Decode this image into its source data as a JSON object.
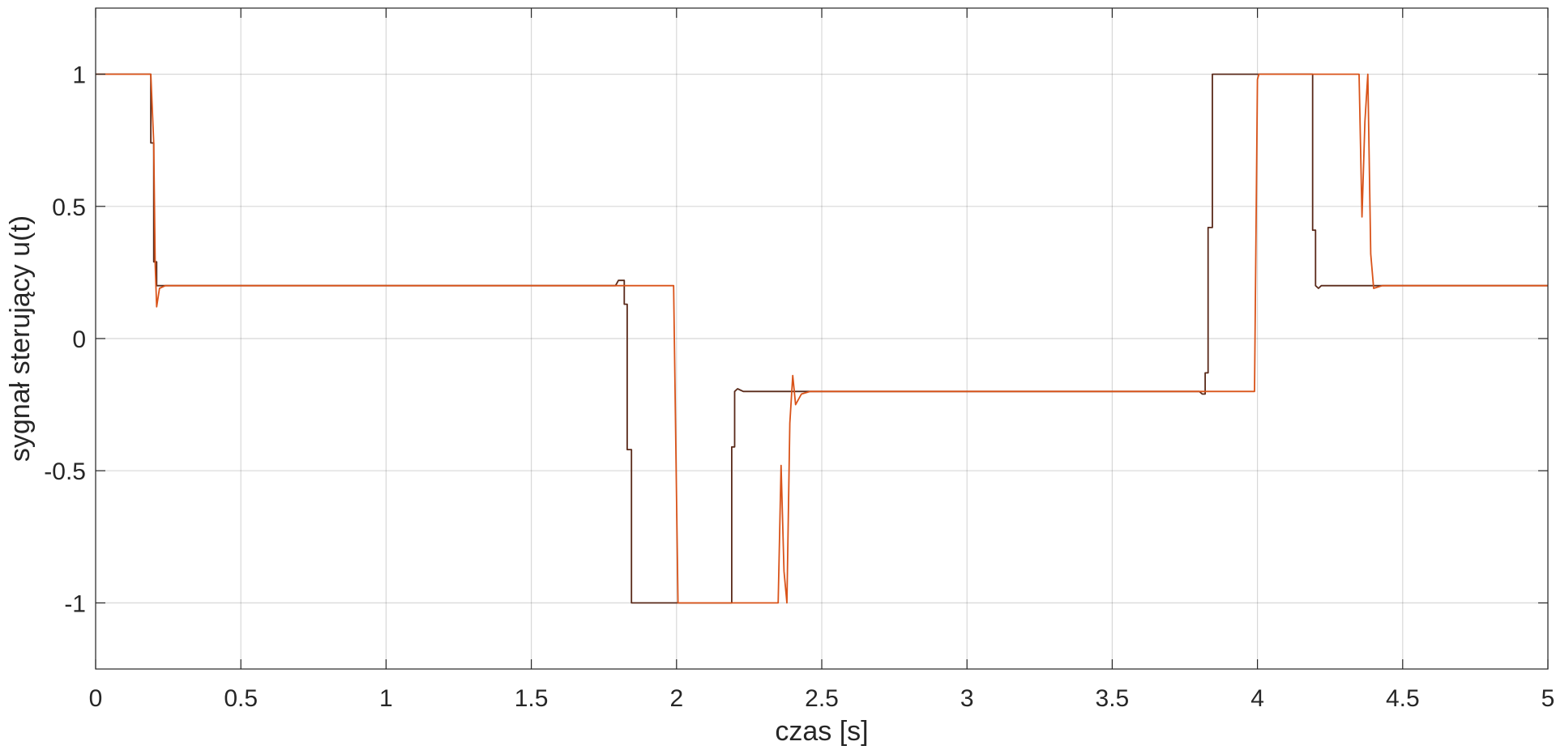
{
  "chart_data": {
    "type": "line",
    "title": "",
    "xlabel": "czas [s]",
    "ylabel": "sygnał sterujący u(t)",
    "xlim": [
      0,
      5
    ],
    "ylim": [
      -1.25,
      1.25
    ],
    "grid": true,
    "legend": "none",
    "x_ticks": [
      0,
      0.5,
      1,
      1.5,
      2,
      2.5,
      3,
      3.5,
      4,
      4.5,
      5
    ],
    "x_tick_labels": [
      "0",
      "0.5",
      "1",
      "1.5",
      "2",
      "2.5",
      "3",
      "3.5",
      "4",
      "4.5",
      "5"
    ],
    "y_ticks": [
      -1,
      -0.5,
      0,
      0.5,
      1
    ],
    "y_tick_labels": [
      "-1",
      "-0.5",
      "0",
      "0.5",
      "1"
    ],
    "series": [
      {
        "color": "#5a2a1a",
        "points": [
          [
            0,
            1
          ],
          [
            0.19,
            1
          ],
          [
            0.19,
            0.74
          ],
          [
            0.2,
            0.74
          ],
          [
            0.2,
            0.29
          ],
          [
            0.21,
            0.29
          ],
          [
            0.21,
            0.2
          ],
          [
            0.22,
            0.2
          ],
          [
            1.79,
            0.2
          ],
          [
            1.8,
            0.22
          ],
          [
            1.82,
            0.22
          ],
          [
            1.82,
            0.13
          ],
          [
            1.83,
            0.13
          ],
          [
            1.83,
            -0.42
          ],
          [
            1.845,
            -0.42
          ],
          [
            1.845,
            -1
          ],
          [
            2.19,
            -1
          ],
          [
            2.19,
            -0.41
          ],
          [
            2.2,
            -0.41
          ],
          [
            2.2,
            -0.2
          ],
          [
            2.21,
            -0.19
          ],
          [
            2.23,
            -0.2
          ],
          [
            3.8,
            -0.2
          ],
          [
            3.81,
            -0.21
          ],
          [
            3.82,
            -0.21
          ],
          [
            3.82,
            -0.13
          ],
          [
            3.83,
            -0.13
          ],
          [
            3.83,
            0.42
          ],
          [
            3.845,
            0.42
          ],
          [
            3.845,
            1
          ],
          [
            4.19,
            1
          ],
          [
            4.19,
            0.41
          ],
          [
            4.2,
            0.41
          ],
          [
            4.2,
            0.2
          ],
          [
            4.21,
            0.19
          ],
          [
            4.22,
            0.2
          ],
          [
            5,
            0.2
          ]
        ]
      },
      {
        "color": "#d95319",
        "points": [
          [
            0,
            1
          ],
          [
            0.19,
            1
          ],
          [
            0.2,
            0.74
          ],
          [
            0.205,
            0.28
          ],
          [
            0.21,
            0.12
          ],
          [
            0.22,
            0.19
          ],
          [
            0.24,
            0.2
          ],
          [
            1.99,
            0.2
          ],
          [
            2.005,
            -1
          ],
          [
            2.35,
            -1
          ],
          [
            2.36,
            -0.48
          ],
          [
            2.37,
            -0.88
          ],
          [
            2.38,
            -1
          ],
          [
            2.39,
            -0.32
          ],
          [
            2.4,
            -0.14
          ],
          [
            2.41,
            -0.25
          ],
          [
            2.43,
            -0.21
          ],
          [
            2.46,
            -0.2
          ],
          [
            3.99,
            -0.2
          ],
          [
            4.0,
            0.98
          ],
          [
            4.005,
            1
          ],
          [
            4.35,
            1
          ],
          [
            4.36,
            0.46
          ],
          [
            4.37,
            0.82
          ],
          [
            4.38,
            1
          ],
          [
            4.39,
            0.32
          ],
          [
            4.4,
            0.19
          ],
          [
            4.43,
            0.2
          ],
          [
            5,
            0.2
          ]
        ]
      }
    ]
  }
}
